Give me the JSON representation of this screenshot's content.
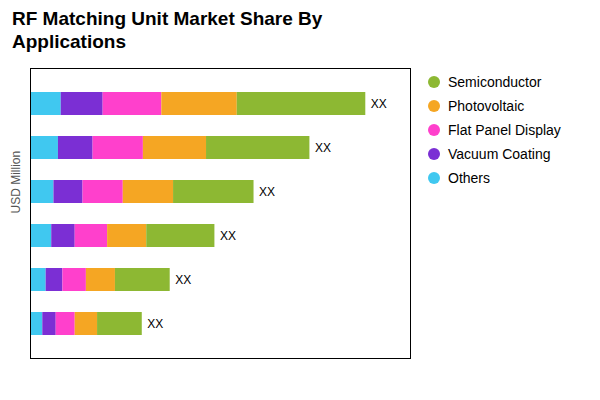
{
  "chart_data": {
    "type": "bar",
    "title": "RF Matching Unit Market Share By\nApplications",
    "ylabel": "USD Million",
    "orientation": "horizontal",
    "stacked": true,
    "categories": [
      null,
      null,
      null,
      null,
      null,
      null
    ],
    "series": [
      {
        "name": "Others",
        "color": "#40c8f0",
        "values": [
          0.55,
          0.5,
          0.42,
          0.38,
          0.28,
          0.22
        ]
      },
      {
        "name": "Vacuum Coating",
        "color": "#7b2fd4",
        "values": [
          0.75,
          0.62,
          0.52,
          0.42,
          0.3,
          0.24
        ]
      },
      {
        "name": "Flat Panel Display",
        "color": "#ff40cc",
        "values": [
          1.05,
          0.9,
          0.72,
          0.58,
          0.42,
          0.34
        ]
      },
      {
        "name": "Photovoltaic",
        "color": "#f5a623",
        "values": [
          1.35,
          1.13,
          0.9,
          0.7,
          0.52,
          0.4
        ]
      },
      {
        "name": "Semiconductor",
        "color": "#8db833",
        "values": [
          2.3,
          1.85,
          1.44,
          1.22,
          0.98,
          0.8
        ]
      }
    ],
    "xlim": [
      0,
      6.8
    ],
    "xticks": [],
    "tick_labels": false,
    "grid": false,
    "legend": "upper right",
    "annotations": [
      "XX",
      "XX",
      "XX",
      "XX",
      "XX",
      "XX"
    ]
  }
}
